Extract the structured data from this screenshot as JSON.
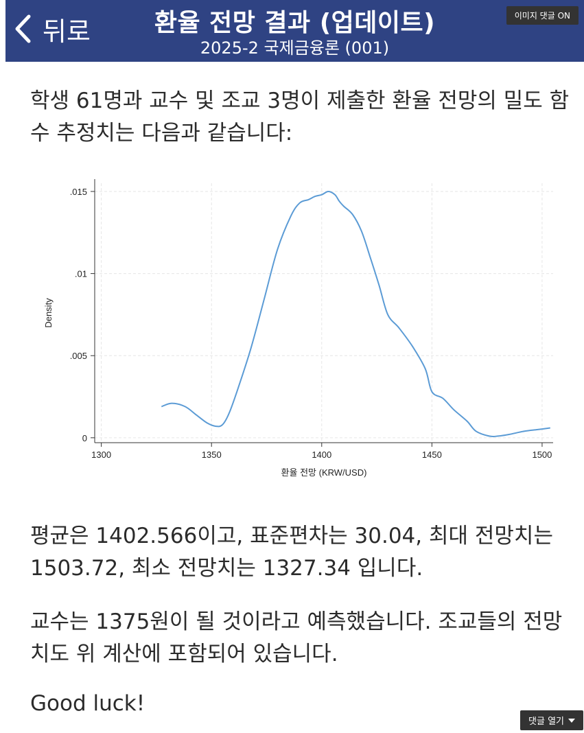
{
  "header": {
    "back_label": "뒤로",
    "title": "환율 전망 결과 (업데이트)",
    "subtitle": "2025-2 국제금융론 (001)",
    "image_comment_badge": "이미지 댓글 ON"
  },
  "content": {
    "intro": "학생 61명과 교수 및 조교 3명이 제출한 환율 전망의 밀도 함수 추정치는 다음과 같습니다:",
    "stats": "평균은 1402.566이고, 표준편차는 30.04, 최대 전망치는 1503.72, 최소 전망치는 1327.34 입니다.",
    "professor": "교수는 1375원이 될 것이라고 예측했습니다. 조교들의 전망치도 위 계산에 포함되어 있습니다.",
    "closing": "Good luck!"
  },
  "footer": {
    "open_comments": "댓글 열기"
  },
  "colors": {
    "header_bg": "#2f4383",
    "line": "#5b9bd5"
  },
  "chart_data": {
    "type": "line",
    "title": "",
    "xlabel": "환율 전망 (KRW/USD)",
    "ylabel": "Density",
    "xlim": [
      1297,
      1505
    ],
    "ylim": [
      -0.0003,
      0.0155
    ],
    "x_ticks": [
      1300,
      1350,
      1400,
      1450,
      1500
    ],
    "x_tick_labels": [
      "1300",
      "1350",
      "1400",
      "1450",
      "1500"
    ],
    "y_ticks": [
      0,
      0.005,
      0.01,
      0.015
    ],
    "y_tick_labels": [
      "0",
      ".005",
      ".01",
      ".015"
    ],
    "grid": true,
    "legend": "none",
    "series": [
      {
        "x": [
          1327.3,
          1332,
          1338,
          1343,
          1348,
          1352,
          1355,
          1358,
          1362,
          1368,
          1374,
          1380,
          1386,
          1390,
          1394,
          1397,
          1400,
          1403,
          1406,
          1408,
          1410,
          1414,
          1418,
          1422,
          1426,
          1430,
          1435,
          1441,
          1447,
          1450,
          1455,
          1460,
          1466,
          1470,
          1476,
          1480,
          1485,
          1492,
          1498,
          1503.7
        ],
        "y": [
          0.0019,
          0.0021,
          0.0019,
          0.0014,
          0.0009,
          0.0007,
          0.0008,
          0.0015,
          0.003,
          0.0055,
          0.0085,
          0.0115,
          0.0135,
          0.0143,
          0.0145,
          0.0147,
          0.0148,
          0.015,
          0.0148,
          0.0144,
          0.0141,
          0.0136,
          0.0126,
          0.011,
          0.0093,
          0.0075,
          0.0067,
          0.0056,
          0.0042,
          0.0028,
          0.0024,
          0.0017,
          0.001,
          0.0004,
          0.0001,
          0.0001,
          0.0002,
          0.0004,
          0.0005,
          0.0006
        ]
      }
    ]
  }
}
